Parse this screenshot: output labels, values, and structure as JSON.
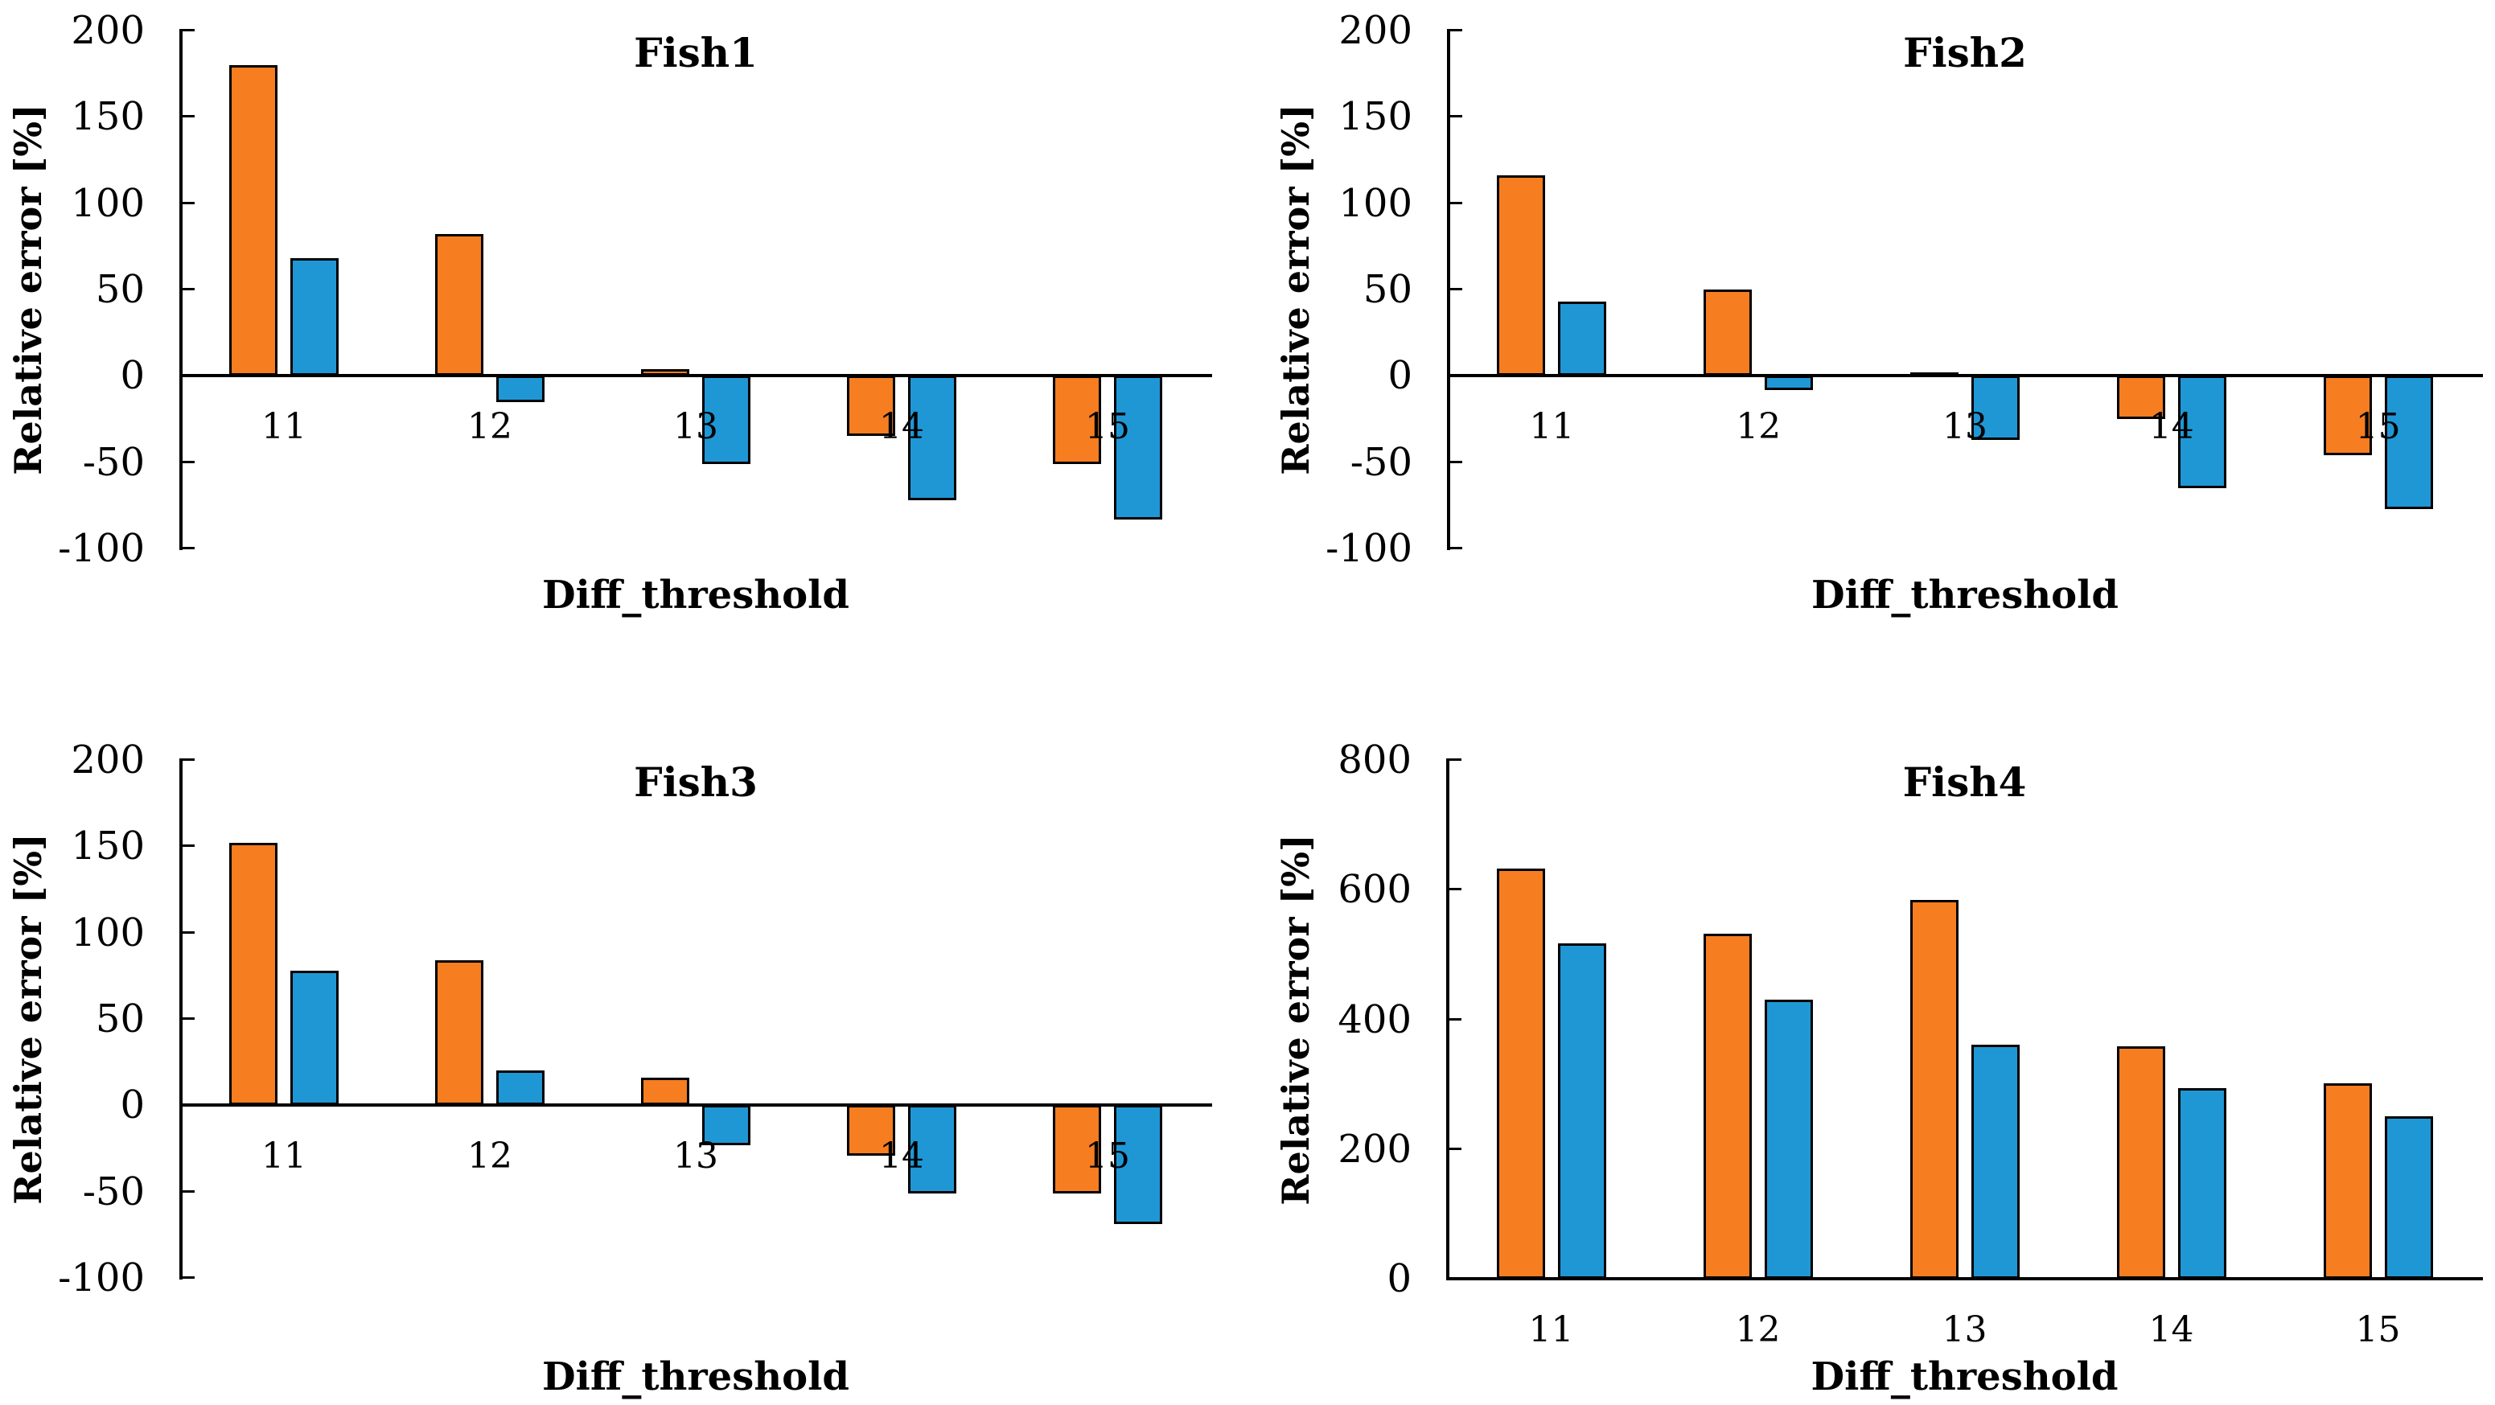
{
  "figure": {
    "background": "#FFFFFF",
    "rows": 2,
    "cols": 2
  },
  "colors": {
    "series_orange": "#F67D20",
    "series_blue": "#2097D5",
    "axis": "#000000",
    "text": "#000000"
  },
  "chart_data": [
    {
      "type": "bar",
      "title": "Fish1",
      "xlabel": "Diff_threshold",
      "ylabel": "Relative error [%]",
      "categories": [
        "11",
        "12",
        "13",
        "14",
        "15"
      ],
      "series": [
        {
          "name": "series-orange",
          "color": "#F67D20",
          "values": [
            180,
            82,
            4,
            -35,
            -51
          ]
        },
        {
          "name": "series-blue",
          "color": "#2097D5",
          "values": [
            68,
            -15,
            -51,
            -72,
            -83
          ]
        }
      ],
      "ylim": [
        -100,
        200
      ],
      "yticks": [
        200,
        150,
        100,
        50,
        0,
        -50,
        -100
      ],
      "grid": false,
      "legend": "none"
    },
    {
      "type": "bar",
      "title": "Fish2",
      "xlabel": "Diff_threshold",
      "ylabel": "Relative error [%]",
      "categories": [
        "11",
        "12",
        "13",
        "14",
        "15"
      ],
      "series": [
        {
          "name": "series-orange",
          "color": "#F67D20",
          "values": [
            116,
            50,
            2,
            -25,
            -46
          ]
        },
        {
          "name": "series-blue",
          "color": "#2097D5",
          "values": [
            43,
            -8,
            -37,
            -65,
            -77
          ]
        }
      ],
      "ylim": [
        -100,
        200
      ],
      "yticks": [
        200,
        150,
        100,
        50,
        0,
        -50,
        -100
      ],
      "grid": false,
      "legend": "none"
    },
    {
      "type": "bar",
      "title": "Fish3",
      "xlabel": "Diff_threshold",
      "ylabel": "Relative error [%]",
      "categories": [
        "11",
        "12",
        "13",
        "14",
        "15"
      ],
      "series": [
        {
          "name": "series-orange",
          "color": "#F67D20",
          "values": [
            152,
            84,
            16,
            -29,
            -51
          ]
        },
        {
          "name": "series-blue",
          "color": "#2097D5",
          "values": [
            78,
            20,
            -23,
            -51,
            -69
          ]
        }
      ],
      "ylim": [
        -100,
        200
      ],
      "yticks": [
        200,
        150,
        100,
        50,
        0,
        -50,
        -100
      ],
      "grid": false,
      "legend": "none"
    },
    {
      "type": "bar",
      "title": "Fish4",
      "xlabel": "Diff_threshold",
      "ylabel": "Relative error [%]",
      "categories": [
        "11",
        "12",
        "13",
        "14",
        "15"
      ],
      "series": [
        {
          "name": "series-orange",
          "color": "#F67D20",
          "values": [
            632,
            532,
            584,
            358,
            301
          ]
        },
        {
          "name": "series-blue",
          "color": "#2097D5",
          "values": [
            517,
            431,
            361,
            294,
            250
          ]
        }
      ],
      "ylim": [
        0,
        800
      ],
      "yticks": [
        800,
        600,
        400,
        200,
        0
      ],
      "grid": false,
      "legend": "none"
    }
  ]
}
